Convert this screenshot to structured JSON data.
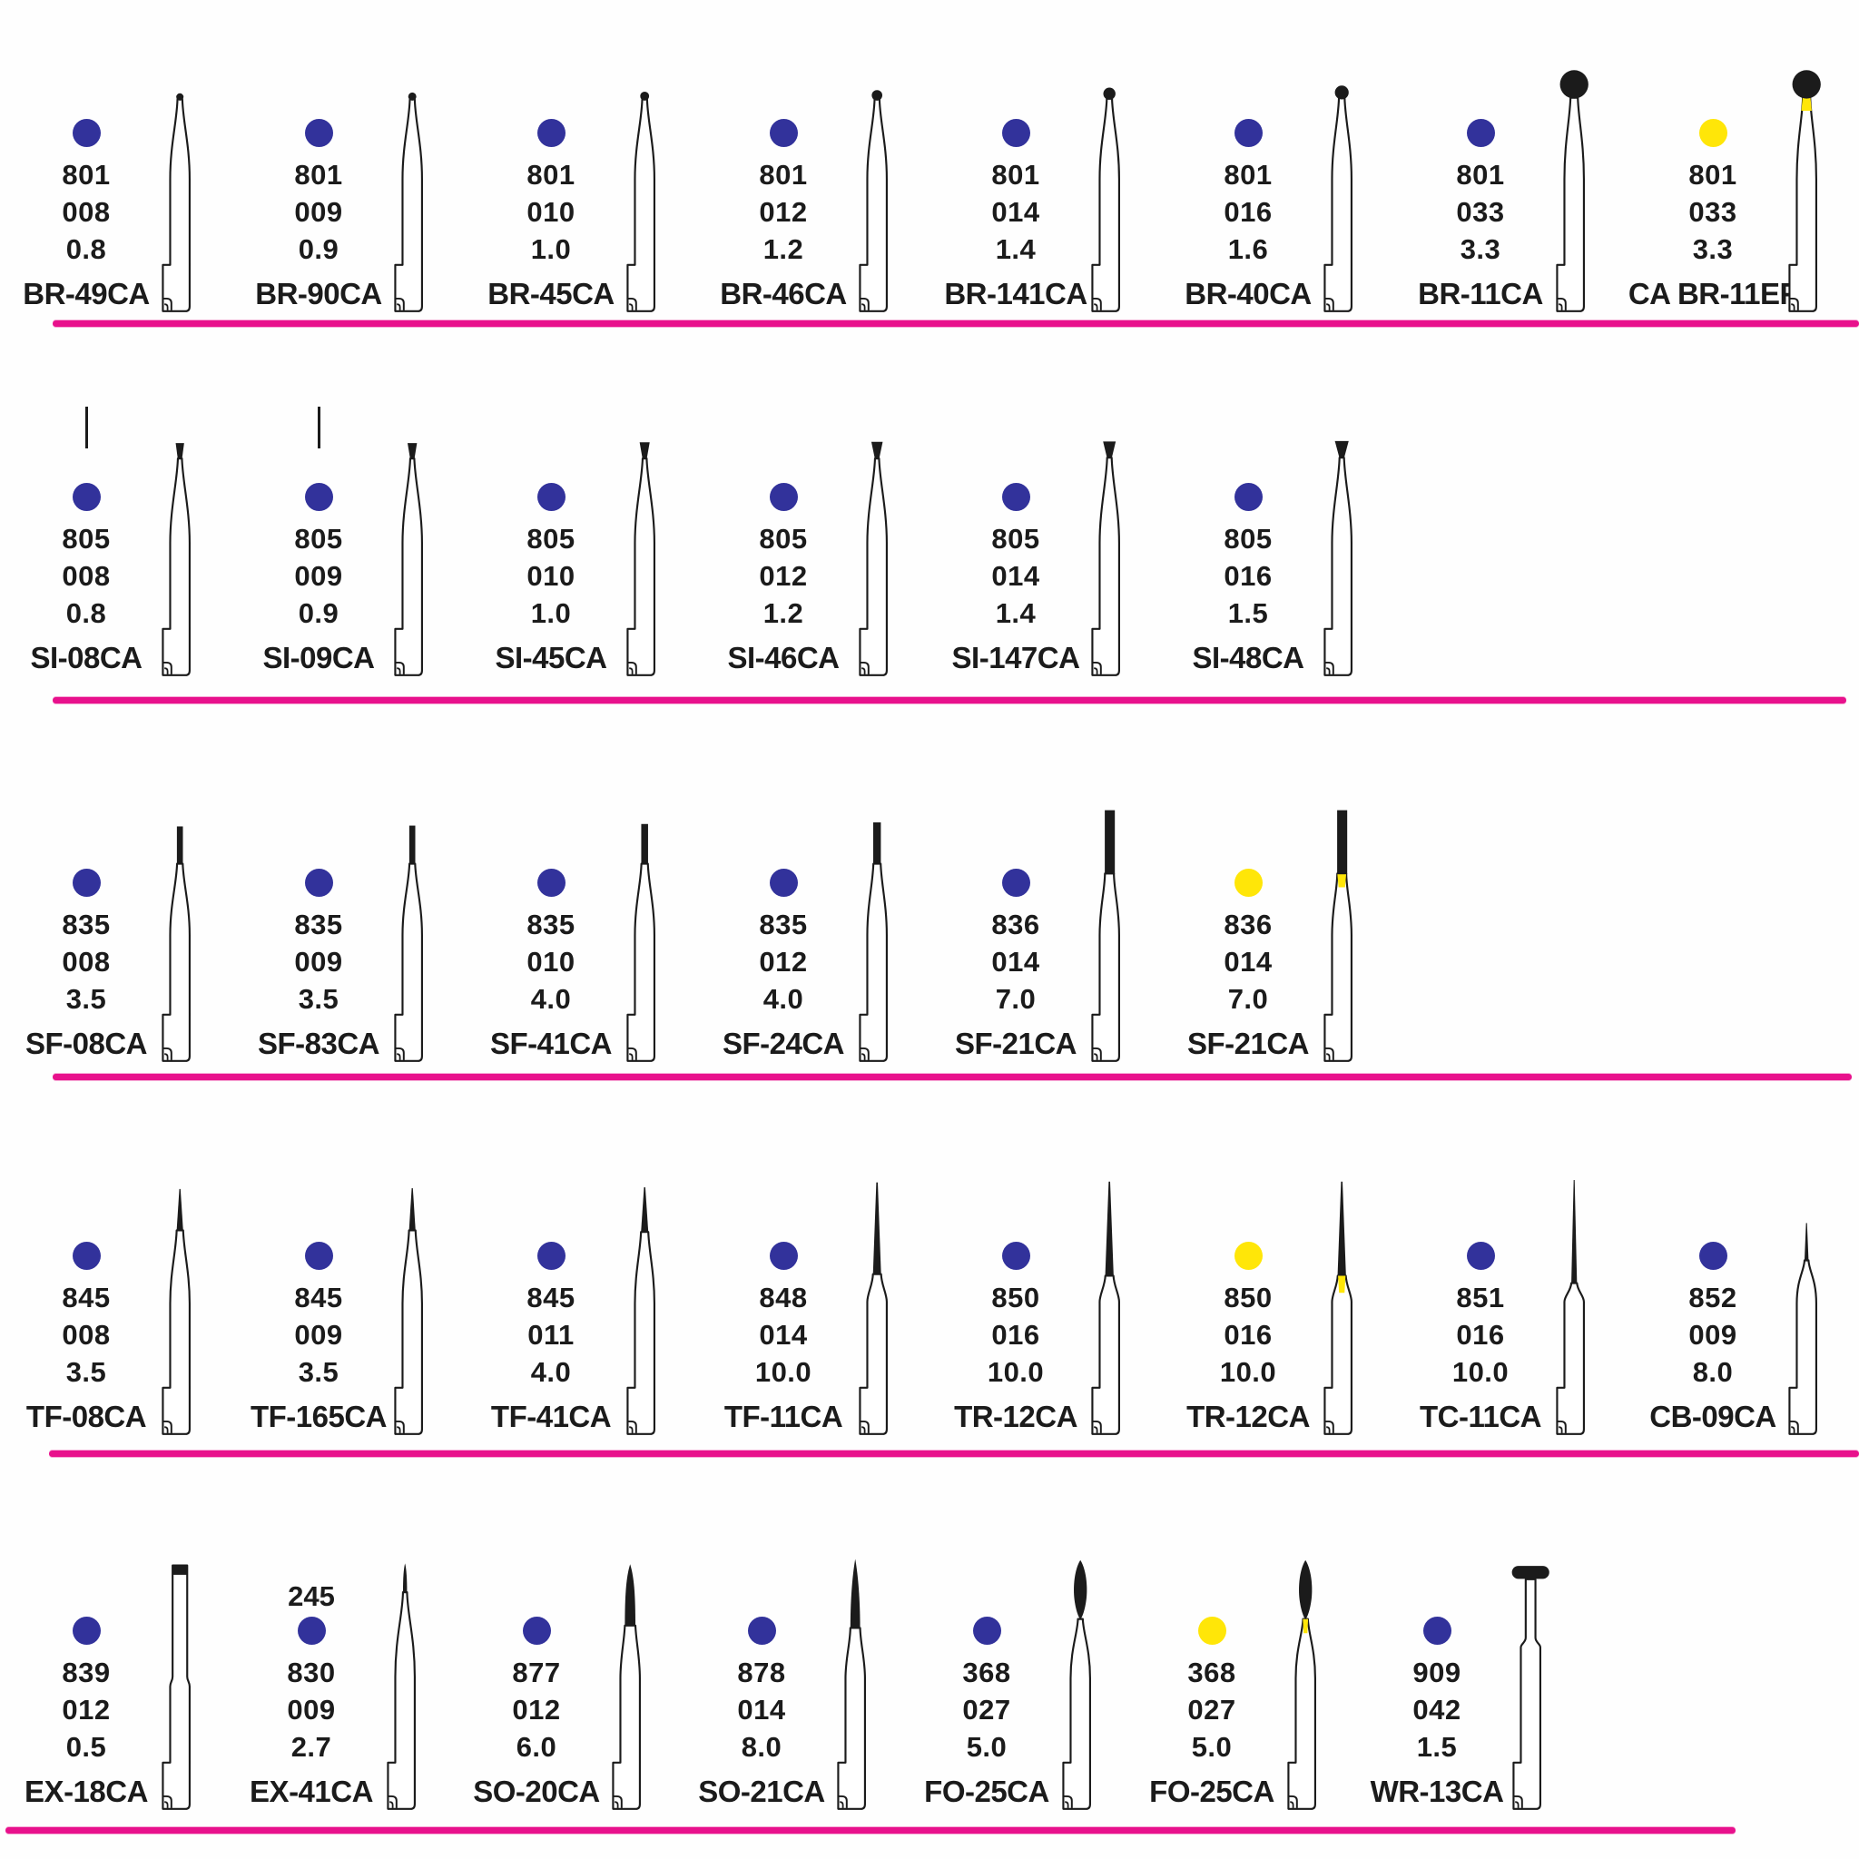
{
  "colors": {
    "ink": "#1b1b1b",
    "blue_code_dot": "#32329b",
    "yellow_code_dot": "#ffe608",
    "divider": "#e8118c",
    "background": "#fefefe"
  },
  "rows": [
    {
      "name": "round-ball-burs",
      "items": [
        {
          "dot": "blue",
          "nums": [
            "801",
            "008",
            "0.8"
          ],
          "label": "BR-49CA",
          "shape": "ball-008"
        },
        {
          "dot": "blue",
          "nums": [
            "801",
            "009",
            "0.9"
          ],
          "label": "BR-90CA",
          "shape": "ball-009"
        },
        {
          "dot": "blue",
          "nums": [
            "801",
            "010",
            "1.0"
          ],
          "label": "BR-45CA",
          "shape": "ball-010"
        },
        {
          "dot": "blue",
          "nums": [
            "801",
            "012",
            "1.2"
          ],
          "label": "BR-46CA",
          "shape": "ball-012"
        },
        {
          "dot": "blue",
          "nums": [
            "801",
            "014",
            "1.4"
          ],
          "label": "BR-141CA",
          "shape": "ball-014"
        },
        {
          "dot": "blue",
          "nums": [
            "801",
            "016",
            "1.6"
          ],
          "label": "BR-40CA",
          "shape": "ball-016"
        },
        {
          "dot": "blue",
          "nums": [
            "801",
            "033",
            "3.3"
          ],
          "label": "BR-11CA",
          "shape": "ball-033"
        },
        {
          "dot": "yellow",
          "nums": [
            "801",
            "033",
            "3.3"
          ],
          "label": "CA BR-11EF",
          "shape": "ball-033-ef"
        }
      ]
    },
    {
      "name": "inverted-cone-burs",
      "items": [
        {
          "dot": "blue",
          "tick": true,
          "nums": [
            "805",
            "008",
            "0.8"
          ],
          "label": "SI-08CA",
          "shape": "invcone-008"
        },
        {
          "dot": "blue",
          "tick": true,
          "nums": [
            "805",
            "009",
            "0.9"
          ],
          "label": "SI-09CA",
          "shape": "invcone-009"
        },
        {
          "dot": "blue",
          "nums": [
            "805",
            "010",
            "1.0"
          ],
          "label": "SI-45CA",
          "shape": "invcone-010"
        },
        {
          "dot": "blue",
          "nums": [
            "805",
            "012",
            "1.2"
          ],
          "label": "SI-46CA",
          "shape": "invcone-012"
        },
        {
          "dot": "blue",
          "nums": [
            "805",
            "014",
            "1.4"
          ],
          "label": "SI-147CA",
          "shape": "invcone-014"
        },
        {
          "dot": "blue",
          "nums": [
            "805",
            "016",
            "1.5"
          ],
          "label": "SI-48CA",
          "shape": "invcone-016"
        }
      ]
    },
    {
      "name": "straight-fissure-burs",
      "items": [
        {
          "dot": "blue",
          "nums": [
            "835",
            "008",
            "3.5"
          ],
          "label": "SF-08CA",
          "shape": "cyl-008"
        },
        {
          "dot": "blue",
          "nums": [
            "835",
            "009",
            "3.5"
          ],
          "label": "SF-83CA",
          "shape": "cyl-009"
        },
        {
          "dot": "blue",
          "nums": [
            "835",
            "010",
            "4.0"
          ],
          "label": "SF-41CA",
          "shape": "cyl-010"
        },
        {
          "dot": "blue",
          "nums": [
            "835",
            "012",
            "4.0"
          ],
          "label": "SF-24CA",
          "shape": "cyl-012"
        },
        {
          "dot": "blue",
          "nums": [
            "836",
            "014",
            "7.0"
          ],
          "label": "SF-21CA",
          "shape": "cyl-836"
        },
        {
          "dot": "yellow",
          "nums": [
            "836",
            "014",
            "7.0"
          ],
          "label": "SF-21CA",
          "shape": "cyl-836-y"
        }
      ]
    },
    {
      "name": "tapered-fissure-burs",
      "items": [
        {
          "dot": "blue",
          "nums": [
            "845",
            "008",
            "3.5"
          ],
          "label": "TF-08CA",
          "shape": "taper-008"
        },
        {
          "dot": "blue",
          "nums": [
            "845",
            "009",
            "3.5"
          ],
          "label": "TF-165CA",
          "shape": "taper-009"
        },
        {
          "dot": "blue",
          "nums": [
            "845",
            "011",
            "4.0"
          ],
          "label": "TF-41CA",
          "shape": "taper-011"
        },
        {
          "dot": "blue",
          "nums": [
            "848",
            "014",
            "10.0"
          ],
          "label": "TF-11CA",
          "shape": "taperlong-848"
        },
        {
          "dot": "blue",
          "nums": [
            "850",
            "016",
            "10.0"
          ],
          "label": "TR-12CA",
          "shape": "taperlong-850"
        },
        {
          "dot": "yellow",
          "nums": [
            "850",
            "016",
            "10.0"
          ],
          "label": "TR-12CA",
          "shape": "taperlong-850-y"
        },
        {
          "dot": "blue",
          "nums": [
            "851",
            "016",
            "10.0"
          ],
          "label": "TC-11CA",
          "shape": "needle-851"
        },
        {
          "dot": "blue",
          "nums": [
            "852",
            "009",
            "8.0"
          ],
          "label": "CB-09CA",
          "shape": "slim-852"
        }
      ]
    },
    {
      "name": "special-shape-burs",
      "items": [
        {
          "dot": "blue",
          "nums": [
            "839",
            "012",
            "0.5"
          ],
          "label": "EX-18CA",
          "shape": "endcut-839"
        },
        {
          "dot": "blue",
          "pre": "245",
          "nums": [
            "830",
            "009",
            "2.7"
          ],
          "label": "EX-41CA",
          "shape": "bud-830"
        },
        {
          "dot": "blue",
          "nums": [
            "877",
            "012",
            "6.0"
          ],
          "label": "SO-20CA",
          "shape": "torpedo-877"
        },
        {
          "dot": "blue",
          "nums": [
            "878",
            "014",
            "8.0"
          ],
          "label": "SO-21CA",
          "shape": "flame-878"
        },
        {
          "dot": "blue",
          "nums": [
            "368",
            "027",
            "5.0"
          ],
          "label": "FO-25CA",
          "shape": "egg-368"
        },
        {
          "dot": "yellow",
          "nums": [
            "368",
            "027",
            "5.0"
          ],
          "label": "FO-25CA",
          "shape": "egg-368-y"
        },
        {
          "dot": "blue",
          "nums": [
            "909",
            "042",
            "1.5"
          ],
          "label": "WR-13CA",
          "shape": "wheel-909"
        }
      ]
    }
  ]
}
